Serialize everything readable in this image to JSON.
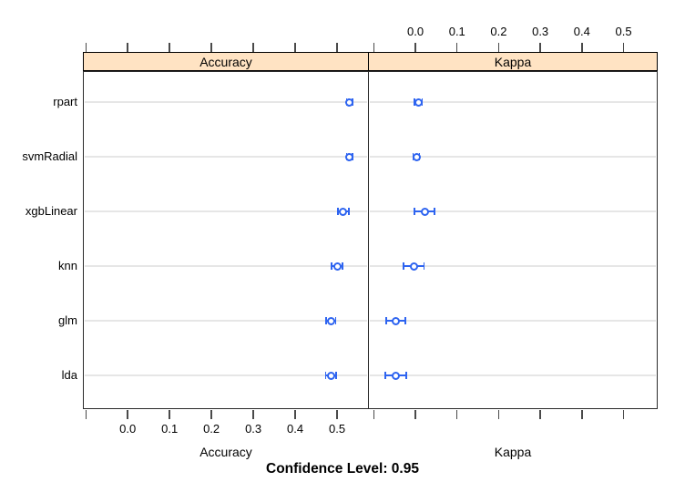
{
  "figure": {
    "caption": "Confidence Level: 0.95",
    "background": "#ffffff"
  },
  "colors": {
    "point_blue": "#2E64F0",
    "grid_gray": "#e6e6e6",
    "strip_fill": "#FFE3C3",
    "panel_border": "#2b2b2b",
    "tick_color": "#4a4a4a"
  },
  "chart_data": {
    "type": "scatter",
    "subtype": "dotplot-with-confidence-intervals",
    "title": "",
    "caption": "Confidence Level: 0.95",
    "confidence_level": 0.95,
    "models": [
      "rpart",
      "svmRadial",
      "xgbLinear",
      "knn",
      "glm",
      "lda"
    ],
    "grid": "horizontal-rows",
    "panels": [
      {
        "name": "Accuracy",
        "strip_label": "Accuracy",
        "axis_label": "Accuracy",
        "xlim": [
          -0.107,
          0.576
        ],
        "ticks": [
          -0.1,
          0.0,
          0.1,
          0.2,
          0.3,
          0.4,
          0.5
        ],
        "tick_labels": [
          "",
          "0.0",
          "0.1",
          "0.2",
          "0.3",
          "0.4",
          "0.5"
        ],
        "labeled_side": "bottom",
        "points": [
          {
            "model": "rpart",
            "value": 0.53,
            "lower": 0.523,
            "upper": 0.537
          },
          {
            "model": "svmRadial",
            "value": 0.53,
            "lower": 0.523,
            "upper": 0.537
          },
          {
            "model": "xgbLinear",
            "value": 0.515,
            "lower": 0.502,
            "upper": 0.528
          },
          {
            "model": "knn",
            "value": 0.5,
            "lower": 0.487,
            "upper": 0.513
          },
          {
            "model": "glm",
            "value": 0.485,
            "lower": 0.474,
            "upper": 0.497
          },
          {
            "model": "lda",
            "value": 0.485,
            "lower": 0.473,
            "upper": 0.498
          }
        ]
      },
      {
        "name": "Kappa",
        "strip_label": "Kappa",
        "axis_label": "Kappa",
        "xlim": [
          -0.114,
          0.582
        ],
        "ticks": [
          -0.1,
          0.0,
          0.1,
          0.2,
          0.3,
          0.4,
          0.5
        ],
        "tick_labels": [
          "",
          "0.0",
          "0.1",
          "0.2",
          "0.3",
          "0.4",
          "0.5"
        ],
        "labeled_side": "top",
        "points": [
          {
            "model": "rpart",
            "value": 0.007,
            "lower": -0.002,
            "upper": 0.016
          },
          {
            "model": "svmRadial",
            "value": 0.002,
            "lower": -0.006,
            "upper": 0.01
          },
          {
            "model": "xgbLinear",
            "value": 0.022,
            "lower": -0.002,
            "upper": 0.046
          },
          {
            "model": "knn",
            "value": -0.004,
            "lower": -0.029,
            "upper": 0.021
          },
          {
            "model": "glm",
            "value": -0.048,
            "lower": -0.07,
            "upper": -0.024
          },
          {
            "model": "lda",
            "value": -0.048,
            "lower": -0.073,
            "upper": -0.022
          }
        ]
      }
    ]
  }
}
